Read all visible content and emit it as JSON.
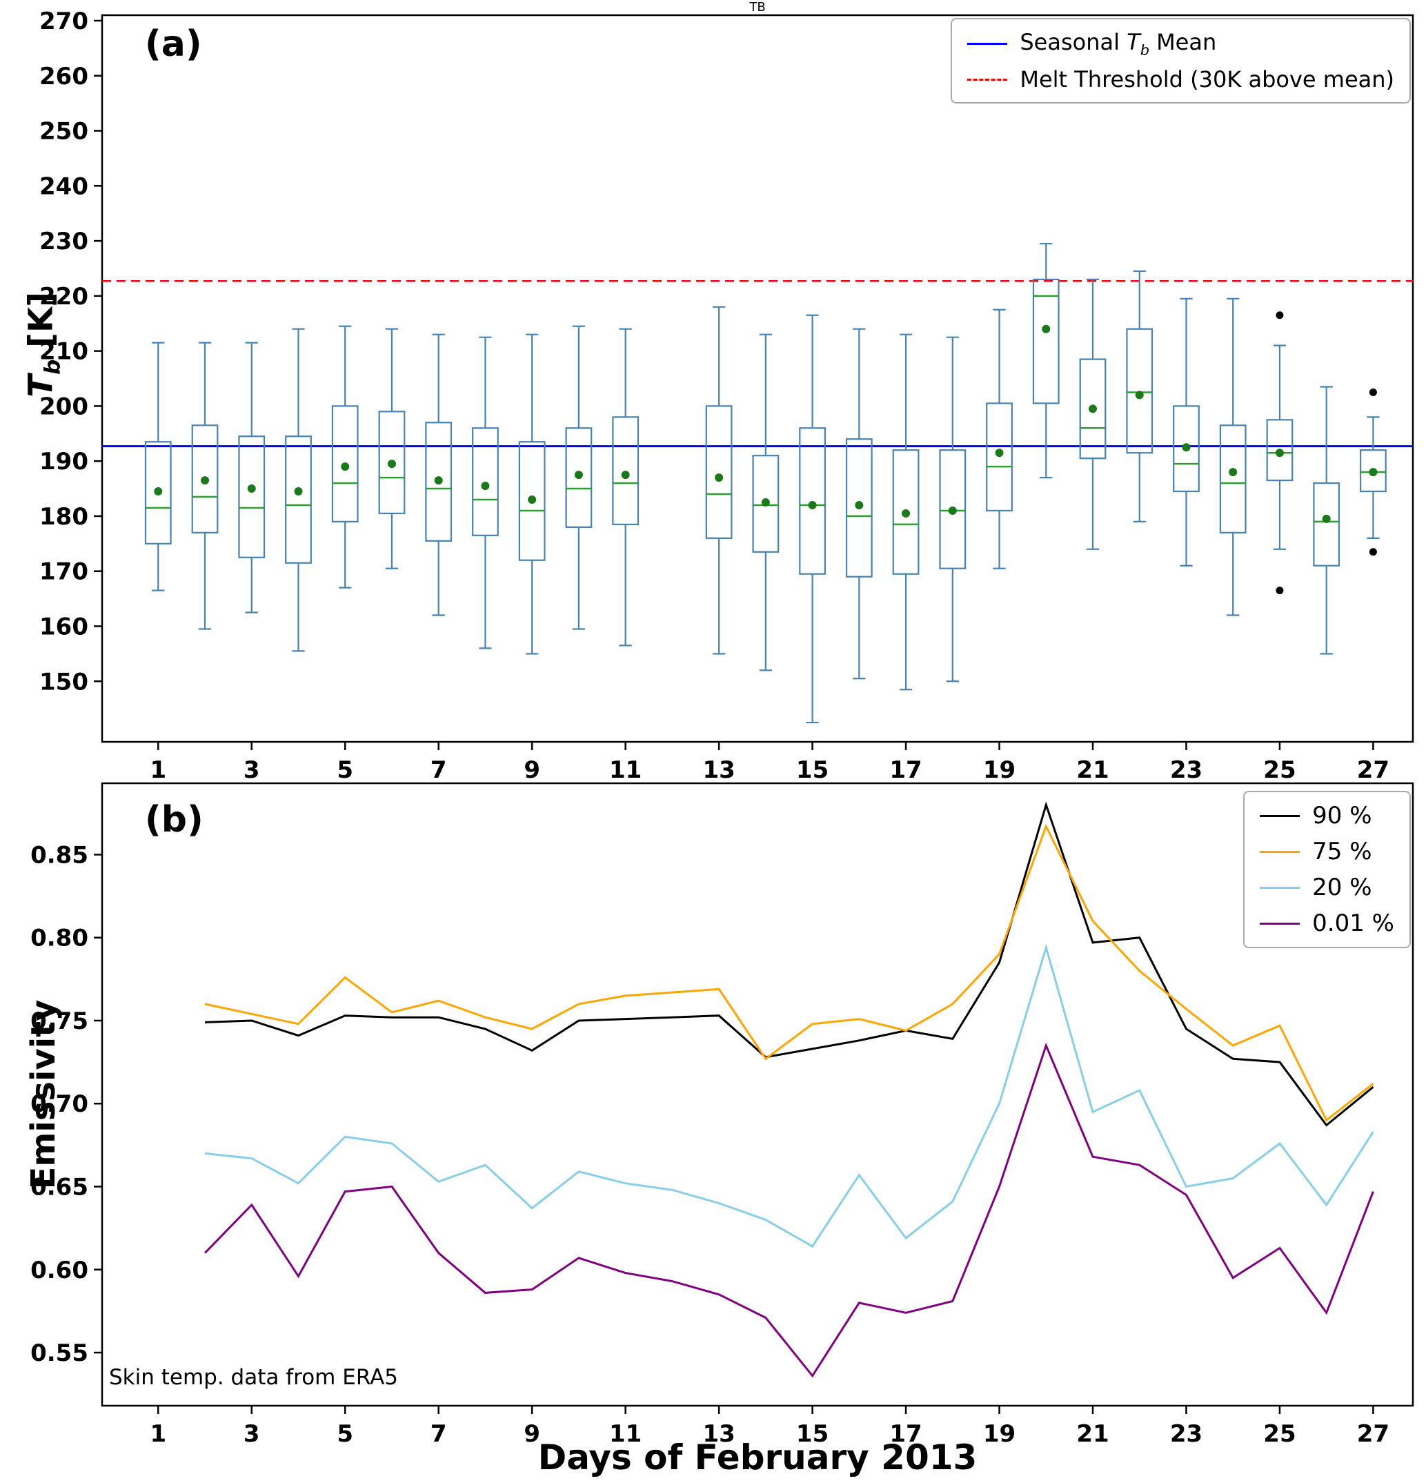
{
  "figure_title": "TB",
  "panel_a": {
    "label": "(a)",
    "ylabel": {
      "sym": "T",
      "sub": "b",
      "unit": " [K]"
    },
    "legend": {
      "mean": {
        "pre": "Seasonal ",
        "sym": "T",
        "sub": "b",
        "post": " Mean"
      },
      "threshold": "Melt Threshold (30K above mean)"
    }
  },
  "panel_b": {
    "label": "(b)",
    "ylabel": "Emissivity",
    "annotation": "Skin temp. data from ERA5",
    "xlabel": "Days of February 2013"
  },
  "chart_data": [
    {
      "type": "boxplot",
      "title": "TB",
      "ylabel": "Tb [K]",
      "xlabel": "",
      "xlim": [
        -0.2,
        27.85
      ],
      "ylim": [
        139,
        271
      ],
      "yticks": [
        150,
        160,
        170,
        180,
        190,
        200,
        210,
        220,
        230,
        240,
        250,
        260,
        270
      ],
      "xticks": [
        1,
        3,
        5,
        7,
        9,
        11,
        13,
        15,
        17,
        19,
        21,
        23,
        25,
        27
      ],
      "colors": {
        "box": "#4682b4",
        "median": "#2ca02c",
        "mean": "#1a7a1a",
        "flier": "#000000"
      },
      "mean_line": {
        "value": 192.7,
        "color": "#0000ff",
        "style": "solid",
        "label": "Seasonal Tb Mean"
      },
      "melt_threshold": {
        "value": 222.7,
        "color": "#ff0000",
        "style": "dashed",
        "label": "Melt Threshold (30K above mean)"
      },
      "boxes": [
        {
          "day": 1,
          "whislo": 166.5,
          "q1": 175.0,
          "med": 181.5,
          "q3": 193.5,
          "whishi": 211.5,
          "mean": 184.5,
          "fliers": []
        },
        {
          "day": 2,
          "whislo": 159.5,
          "q1": 177.0,
          "med": 183.5,
          "q3": 196.5,
          "whishi": 211.5,
          "mean": 186.5,
          "fliers": []
        },
        {
          "day": 3,
          "whislo": 162.5,
          "q1": 172.5,
          "med": 181.5,
          "q3": 194.5,
          "whishi": 211.5,
          "mean": 185.0,
          "fliers": []
        },
        {
          "day": 4,
          "whislo": 155.5,
          "q1": 171.5,
          "med": 182.0,
          "q3": 194.5,
          "whishi": 214.0,
          "mean": 184.5,
          "fliers": []
        },
        {
          "day": 5,
          "whislo": 167.0,
          "q1": 179.0,
          "med": 186.0,
          "q3": 200.0,
          "whishi": 214.5,
          "mean": 189.0,
          "fliers": []
        },
        {
          "day": 6,
          "whislo": 170.5,
          "q1": 180.5,
          "med": 187.0,
          "q3": 199.0,
          "whishi": 214.0,
          "mean": 189.5,
          "fliers": []
        },
        {
          "day": 7,
          "whislo": 162.0,
          "q1": 175.5,
          "med": 185.0,
          "q3": 197.0,
          "whishi": 213.0,
          "mean": 186.5,
          "fliers": []
        },
        {
          "day": 8,
          "whislo": 156.0,
          "q1": 176.5,
          "med": 183.0,
          "q3": 196.0,
          "whishi": 212.5,
          "mean": 185.5,
          "fliers": []
        },
        {
          "day": 9,
          "whislo": 155.0,
          "q1": 172.0,
          "med": 181.0,
          "q3": 193.5,
          "whishi": 213.0,
          "mean": 183.0,
          "fliers": []
        },
        {
          "day": 10,
          "whislo": 159.5,
          "q1": 178.0,
          "med": 185.0,
          "q3": 196.0,
          "whishi": 214.5,
          "mean": 187.5,
          "fliers": []
        },
        {
          "day": 11,
          "whislo": 156.5,
          "q1": 178.5,
          "med": 186.0,
          "q3": 198.0,
          "whishi": 214.0,
          "mean": 187.5,
          "fliers": []
        },
        {
          "day": 13,
          "whislo": 155.0,
          "q1": 176.0,
          "med": 184.0,
          "q3": 200.0,
          "whishi": 218.0,
          "mean": 187.0,
          "fliers": []
        },
        {
          "day": 14,
          "whislo": 152.0,
          "q1": 173.5,
          "med": 182.0,
          "q3": 191.0,
          "whishi": 213.0,
          "mean": 182.5,
          "fliers": []
        },
        {
          "day": 15,
          "whislo": 142.5,
          "q1": 169.5,
          "med": 182.0,
          "q3": 196.0,
          "whishi": 216.5,
          "mean": 182.0,
          "fliers": []
        },
        {
          "day": 16,
          "whislo": 150.5,
          "q1": 169.0,
          "med": 180.0,
          "q3": 194.0,
          "whishi": 214.0,
          "mean": 182.0,
          "fliers": []
        },
        {
          "day": 17,
          "whislo": 148.5,
          "q1": 169.5,
          "med": 178.5,
          "q3": 192.0,
          "whishi": 213.0,
          "mean": 180.5,
          "fliers": []
        },
        {
          "day": 18,
          "whislo": 150.0,
          "q1": 170.5,
          "med": 181.0,
          "q3": 192.0,
          "whishi": 212.5,
          "mean": 181.0,
          "fliers": []
        },
        {
          "day": 19,
          "whislo": 170.5,
          "q1": 181.0,
          "med": 189.0,
          "q3": 200.5,
          "whishi": 217.5,
          "mean": 191.5,
          "fliers": []
        },
        {
          "day": 20,
          "whislo": 187.0,
          "q1": 200.5,
          "med": 220.0,
          "q3": 223.0,
          "whishi": 229.5,
          "mean": 214.0,
          "fliers": []
        },
        {
          "day": 21,
          "whislo": 174.0,
          "q1": 190.5,
          "med": 196.0,
          "q3": 208.5,
          "whishi": 223.0,
          "mean": 199.5,
          "fliers": []
        },
        {
          "day": 22,
          "whislo": 179.0,
          "q1": 191.5,
          "med": 202.5,
          "q3": 214.0,
          "whishi": 224.5,
          "mean": 202.0,
          "fliers": []
        },
        {
          "day": 23,
          "whislo": 171.0,
          "q1": 184.5,
          "med": 189.5,
          "q3": 200.0,
          "whishi": 219.5,
          "mean": 192.5,
          "fliers": []
        },
        {
          "day": 24,
          "whislo": 162.0,
          "q1": 177.0,
          "med": 186.0,
          "q3": 196.5,
          "whishi": 219.5,
          "mean": 188.0,
          "fliers": []
        },
        {
          "day": 25,
          "whislo": 174.0,
          "q1": 186.5,
          "med": 191.5,
          "q3": 197.5,
          "whishi": 211.0,
          "mean": 191.5,
          "fliers": [
            216.5,
            166.5
          ]
        },
        {
          "day": 26,
          "whislo": 155.0,
          "q1": 171.0,
          "med": 179.0,
          "q3": 186.0,
          "whishi": 203.5,
          "mean": 179.5,
          "fliers": []
        },
        {
          "day": 27,
          "whislo": 176.0,
          "q1": 184.5,
          "med": 188.0,
          "q3": 192.0,
          "whishi": 198.0,
          "mean": 188.0,
          "fliers": [
            202.5,
            173.5
          ]
        }
      ]
    },
    {
      "type": "line",
      "title": "",
      "ylabel": "Emissivity",
      "xlabel": "Days of February 2013",
      "annotation": "Skin temp. data from ERA5",
      "xlim": [
        -0.2,
        27.85
      ],
      "ylim": [
        0.518,
        0.893
      ],
      "yticks": [
        0.55,
        0.6,
        0.65,
        0.7,
        0.75,
        0.8,
        0.85
      ],
      "xticks": [
        1,
        3,
        5,
        7,
        9,
        11,
        13,
        15,
        17,
        19,
        21,
        23,
        25,
        27
      ],
      "legend_position": "top-right",
      "x": [
        2,
        3,
        4,
        5,
        6,
        7,
        8,
        9,
        10,
        11,
        12,
        13,
        14,
        15,
        16,
        17,
        18,
        19,
        20,
        21,
        22,
        23,
        24,
        25,
        26,
        27
      ],
      "series": [
        {
          "name": "90 %",
          "color": "#000000",
          "values": [
            0.749,
            0.75,
            0.741,
            0.753,
            0.752,
            0.752,
            0.745,
            0.732,
            0.75,
            0.751,
            0.752,
            0.753,
            0.728,
            0.733,
            0.738,
            0.744,
            0.739,
            0.785,
            0.88,
            0.797,
            0.8,
            0.745,
            0.727,
            0.725,
            0.687,
            0.71
          ]
        },
        {
          "name": "75 %",
          "color": "#ffa500",
          "values": [
            0.76,
            0.754,
            0.748,
            0.776,
            0.755,
            0.762,
            0.752,
            0.745,
            0.76,
            0.765,
            0.767,
            0.769,
            0.727,
            0.748,
            0.751,
            0.744,
            0.76,
            0.79,
            0.867,
            0.81,
            0.78,
            0.757,
            0.735,
            0.747,
            0.69,
            0.712
          ]
        },
        {
          "name": "20 %",
          "color": "#87ceeb",
          "values": [
            0.67,
            0.667,
            0.652,
            0.68,
            0.676,
            0.653,
            0.663,
            0.637,
            0.659,
            0.652,
            0.648,
            0.64,
            0.63,
            0.614,
            0.657,
            0.619,
            0.641,
            0.7,
            0.794,
            0.695,
            0.708,
            0.65,
            0.655,
            0.676,
            0.639,
            0.683
          ]
        },
        {
          "name": "0.01 %",
          "color": "#800080",
          "values": [
            0.61,
            0.639,
            0.596,
            0.647,
            0.65,
            0.61,
            0.586,
            0.588,
            0.607,
            0.598,
            0.593,
            0.585,
            0.571,
            0.536,
            0.58,
            0.574,
            0.581,
            0.65,
            0.735,
            0.668,
            0.663,
            0.645,
            0.595,
            0.613,
            0.574,
            0.647
          ]
        }
      ]
    }
  ]
}
